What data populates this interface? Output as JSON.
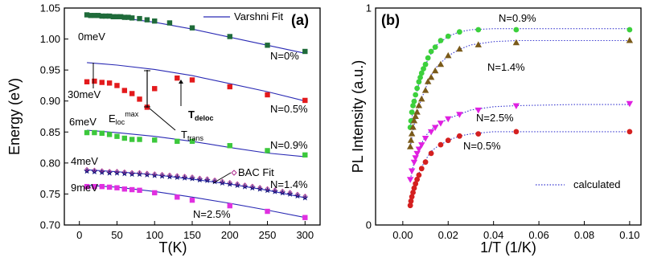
{
  "chart_data": [
    {
      "type": "scatter",
      "panel_label": "(a)",
      "xlabel": "T(K)",
      "ylabel": "Energy (eV)",
      "xlim": [
        -20,
        320
      ],
      "ylim": [
        0.7,
        1.05
      ],
      "xticks": [
        "0",
        "50",
        "100",
        "150",
        "200",
        "250",
        "300"
      ],
      "xtick_values": [
        0,
        50,
        100,
        150,
        200,
        250,
        300
      ],
      "yticks": [
        "0.70",
        "0.75",
        "0.80",
        "0.85",
        "0.90",
        "0.95",
        "1.00",
        "1.05"
      ],
      "ytick_values": [
        0.7,
        0.75,
        0.8,
        0.85,
        0.9,
        0.95,
        1.0,
        1.05
      ],
      "legend": [
        {
          "label": "Varshni Fit",
          "style": "line",
          "color": "#2a2ab4"
        },
        {
          "label": "BAC Fit",
          "style": "open-diamond",
          "color": "#b03090"
        }
      ],
      "series": [
        {
          "name": "N=0%",
          "marker": "square",
          "color": "#1f6b3a",
          "x": [
            10,
            15,
            20,
            25,
            30,
            35,
            40,
            45,
            50,
            55,
            60,
            65,
            70,
            80,
            90,
            100,
            120,
            150,
            200,
            250,
            300
          ],
          "y": [
            1.039,
            1.038,
            1.038,
            1.038,
            1.037,
            1.037,
            1.037,
            1.036,
            1.036,
            1.036,
            1.035,
            1.035,
            1.034,
            1.033,
            1.031,
            1.029,
            1.026,
            1.018,
            1.004,
            0.99,
            0.98
          ],
          "fit_x": [
            10,
            50,
            100,
            150,
            200,
            250,
            300
          ],
          "fit_y": [
            1.039,
            1.035,
            1.027,
            1.016,
            1.003,
            0.99,
            0.977
          ]
        },
        {
          "name": "N=0.5%",
          "marker": "square",
          "color": "#e31a1c",
          "x": [
            10,
            20,
            30,
            40,
            50,
            60,
            70,
            80,
            90,
            100,
            130,
            150,
            200,
            250,
            300
          ],
          "y": [
            0.931,
            0.932,
            0.93,
            0.929,
            0.925,
            0.917,
            0.912,
            0.903,
            0.89,
            0.92,
            0.937,
            0.934,
            0.923,
            0.91,
            0.901
          ],
          "fit_x": [
            10,
            50,
            100,
            150,
            200,
            250,
            300
          ],
          "fit_y": [
            0.962,
            0.958,
            0.951,
            0.941,
            0.928,
            0.915,
            0.9
          ]
        },
        {
          "name": "N=0.9%",
          "marker": "square",
          "color": "#3cc83c",
          "x": [
            10,
            20,
            30,
            40,
            50,
            60,
            70,
            80,
            100,
            130,
            150,
            200,
            250,
            300
          ],
          "y": [
            0.849,
            0.849,
            0.848,
            0.846,
            0.843,
            0.84,
            0.838,
            0.838,
            0.837,
            0.835,
            0.835,
            0.828,
            0.82,
            0.813
          ],
          "fit_x": [
            10,
            50,
            100,
            150,
            200,
            250,
            300
          ],
          "fit_y": [
            0.853,
            0.849,
            0.843,
            0.835,
            0.825,
            0.816,
            0.81
          ]
        },
        {
          "name": "N=1.4%",
          "marker": "star",
          "color": "#1a1a80",
          "x": [
            10,
            20,
            30,
            40,
            50,
            60,
            70,
            80,
            90,
            100,
            110,
            120,
            130,
            140,
            150,
            160,
            170,
            180,
            190,
            200,
            210,
            220,
            230,
            240,
            250,
            260,
            270,
            280,
            290,
            300
          ],
          "y": [
            0.787,
            0.786,
            0.785,
            0.784,
            0.784,
            0.783,
            0.782,
            0.782,
            0.781,
            0.78,
            0.779,
            0.778,
            0.777,
            0.776,
            0.775,
            0.773,
            0.772,
            0.77,
            0.768,
            0.766,
            0.764,
            0.762,
            0.76,
            0.758,
            0.756,
            0.754,
            0.752,
            0.75,
            0.747,
            0.744
          ],
          "fit_x": [
            10,
            50,
            100,
            150,
            200,
            250,
            300
          ],
          "fit_y": [
            0.789,
            0.786,
            0.781,
            0.774,
            0.766,
            0.756,
            0.744
          ]
        },
        {
          "name": "N=2.5%",
          "marker": "square",
          "color": "#e030e0",
          "x": [
            10,
            20,
            30,
            40,
            50,
            60,
            70,
            80,
            100,
            130,
            150,
            200,
            250,
            300
          ],
          "y": [
            0.762,
            0.762,
            0.762,
            0.761,
            0.76,
            0.758,
            0.757,
            0.756,
            0.752,
            0.745,
            0.74,
            0.731,
            0.722,
            0.712
          ],
          "fit_x": [
            10,
            50,
            100,
            150,
            200,
            250,
            300
          ],
          "fit_y": [
            0.764,
            0.761,
            0.754,
            0.745,
            0.735,
            0.724,
            0.712
          ]
        }
      ],
      "annotations": {
        "energy_labels": [
          "0meV",
          "30meV",
          "6meV",
          "4meV",
          "9meV"
        ],
        "e_loc": "E",
        "e_loc_sub": "loc",
        "e_loc_sup": "max",
        "t_deloc": "T",
        "t_deloc_sub": "deloc",
        "t_trans": "T",
        "t_trans_sub": "trans"
      }
    },
    {
      "type": "scatter",
      "panel_label": "(b)",
      "xlabel": "1/T (1/K)",
      "ylabel": "PL Intensity (a.u.)",
      "xlim": [
        -0.012,
        0.105
      ],
      "ylim": [
        0,
        1
      ],
      "xticks": [
        "0.00",
        "0.02",
        "0.04",
        "0.06",
        "0.08",
        "0.10"
      ],
      "xtick_values": [
        0,
        0.02,
        0.04,
        0.06,
        0.08,
        0.1
      ],
      "yticks": [
        "0",
        "1"
      ],
      "ytick_values": [
        0,
        1
      ],
      "legend": [
        {
          "label": "calculated",
          "style": "dotted",
          "color": "#3a3ad0"
        }
      ],
      "series": [
        {
          "name": "N=0.9%",
          "marker": "circle",
          "color": "#3cd03c",
          "x": [
            0.0033,
            0.0036,
            0.004,
            0.0045,
            0.005,
            0.0056,
            0.0063,
            0.0071,
            0.0077,
            0.0083,
            0.0091,
            0.01,
            0.0111,
            0.0125,
            0.0143,
            0.0167,
            0.02,
            0.025,
            0.0333,
            0.05,
            0.1
          ],
          "y": [
            0.45,
            0.48,
            0.52,
            0.55,
            0.57,
            0.6,
            0.63,
            0.66,
            0.68,
            0.7,
            0.72,
            0.74,
            0.77,
            0.8,
            0.82,
            0.85,
            0.87,
            0.89,
            0.9,
            0.9,
            0.9
          ],
          "fit_x": [
            0.0033,
            0.005,
            0.0075,
            0.01,
            0.0125,
            0.015,
            0.02,
            0.025,
            0.03,
            0.04,
            0.05,
            0.075,
            0.1
          ],
          "fit_y": [
            0.45,
            0.56,
            0.67,
            0.74,
            0.79,
            0.83,
            0.87,
            0.89,
            0.9,
            0.905,
            0.905,
            0.905,
            0.905
          ]
        },
        {
          "name": "N=1.4%",
          "marker": "triangle-up",
          "color": "#7a5a1a",
          "x": [
            0.0033,
            0.0036,
            0.004,
            0.0045,
            0.005,
            0.0056,
            0.0063,
            0.0071,
            0.0083,
            0.01,
            0.0111,
            0.0125,
            0.0143,
            0.0167,
            0.02,
            0.025,
            0.0333,
            0.05,
            0.1
          ],
          "y": [
            0.36,
            0.39,
            0.42,
            0.45,
            0.48,
            0.5,
            0.52,
            0.55,
            0.58,
            0.62,
            0.66,
            0.68,
            0.71,
            0.74,
            0.78,
            0.81,
            0.83,
            0.84,
            0.85
          ],
          "fit_x": [
            0.0033,
            0.005,
            0.0075,
            0.01,
            0.0125,
            0.015,
            0.02,
            0.025,
            0.03,
            0.04,
            0.05,
            0.075,
            0.1
          ],
          "fit_y": [
            0.36,
            0.46,
            0.56,
            0.63,
            0.69,
            0.73,
            0.78,
            0.81,
            0.83,
            0.845,
            0.85,
            0.85,
            0.85
          ]
        },
        {
          "name": "N=2.5%",
          "marker": "triangle-down",
          "color": "#e020e0",
          "x": [
            0.0033,
            0.004,
            0.005,
            0.0056,
            0.0063,
            0.0071,
            0.0083,
            0.01,
            0.0125,
            0.0143,
            0.0167,
            0.02,
            0.025,
            0.0333,
            0.05,
            0.1
          ],
          "y": [
            0.21,
            0.25,
            0.29,
            0.31,
            0.33,
            0.35,
            0.37,
            0.4,
            0.43,
            0.45,
            0.47,
            0.49,
            0.51,
            0.53,
            0.55,
            0.56
          ],
          "fit_x": [
            0.0033,
            0.005,
            0.0075,
            0.01,
            0.0125,
            0.015,
            0.02,
            0.025,
            0.03,
            0.04,
            0.05,
            0.075,
            0.1
          ],
          "fit_y": [
            0.21,
            0.29,
            0.36,
            0.41,
            0.44,
            0.46,
            0.49,
            0.51,
            0.53,
            0.545,
            0.55,
            0.555,
            0.555
          ]
        },
        {
          "name": "N=0.5%",
          "marker": "circle",
          "color": "#d42020",
          "x": [
            0.0033,
            0.0036,
            0.004,
            0.0045,
            0.005,
            0.0056,
            0.0063,
            0.0071,
            0.0083,
            0.01,
            0.0125,
            0.0167,
            0.02,
            0.025,
            0.0333,
            0.05,
            0.1
          ],
          "y": [
            0.09,
            0.11,
            0.13,
            0.15,
            0.17,
            0.19,
            0.21,
            0.23,
            0.26,
            0.29,
            0.33,
            0.37,
            0.39,
            0.41,
            0.42,
            0.43,
            0.43
          ],
          "fit_x": [
            0.0033,
            0.005,
            0.0075,
            0.01,
            0.0125,
            0.015,
            0.02,
            0.025,
            0.03,
            0.04,
            0.05,
            0.075,
            0.1
          ],
          "fit_y": [
            0.09,
            0.17,
            0.25,
            0.3,
            0.34,
            0.36,
            0.39,
            0.41,
            0.42,
            0.43,
            0.43,
            0.43,
            0.43
          ]
        }
      ]
    }
  ]
}
